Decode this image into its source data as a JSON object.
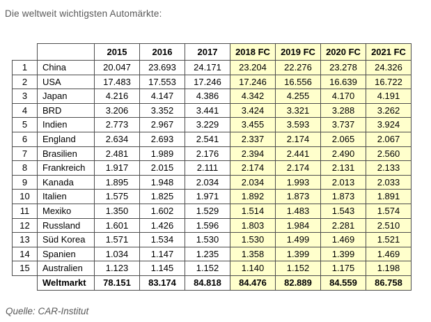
{
  "title": "Die weltweit wichtigsten Automärkte:",
  "source": "Quelle: CAR-Institut",
  "colors": {
    "fc_background": "#ffffcc",
    "grid_border": "#4d4d4d",
    "muted_text": "#595959"
  },
  "table": {
    "year_headers": [
      "2015",
      "2016",
      "2017",
      "2018 FC",
      "2019 FC",
      "2020 FC",
      "2021 FC"
    ],
    "fc_start_index": 3,
    "rows": [
      {
        "rank": "1",
        "country": "China",
        "values": [
          "20.047",
          "23.693",
          "24.171",
          "23.204",
          "22.276",
          "23.278",
          "24.326"
        ]
      },
      {
        "rank": "2",
        "country": "USA",
        "values": [
          "17.483",
          "17.553",
          "17.246",
          "17.246",
          "16.556",
          "16.639",
          "16.722"
        ]
      },
      {
        "rank": "3",
        "country": "Japan",
        "values": [
          "4.216",
          "4.147",
          "4.386",
          "4.342",
          "4.255",
          "4.170",
          "4.191"
        ]
      },
      {
        "rank": "4",
        "country": "BRD",
        "values": [
          "3.206",
          "3.352",
          "3.441",
          "3.424",
          "3.321",
          "3.288",
          "3.262"
        ]
      },
      {
        "rank": "5",
        "country": "Indien",
        "values": [
          "2.773",
          "2.967",
          "3.229",
          "3.455",
          "3.593",
          "3.737",
          "3.924"
        ]
      },
      {
        "rank": "6",
        "country": "England",
        "values": [
          "2.634",
          "2.693",
          "2.541",
          "2.337",
          "2.174",
          "2.065",
          "2.067"
        ]
      },
      {
        "rank": "7",
        "country": "Brasilien",
        "values": [
          "2.481",
          "1.989",
          "2.176",
          "2.394",
          "2.441",
          "2.490",
          "2.560"
        ]
      },
      {
        "rank": "8",
        "country": "Frankreich",
        "values": [
          "1.917",
          "2.015",
          "2.111",
          "2.174",
          "2.174",
          "2.131",
          "2.133"
        ]
      },
      {
        "rank": "9",
        "country": "Kanada",
        "values": [
          "1.895",
          "1.948",
          "2.034",
          "2.034",
          "1.993",
          "2.013",
          "2.033"
        ]
      },
      {
        "rank": "10",
        "country": "Italien",
        "values": [
          "1.575",
          "1.825",
          "1.971",
          "1.892",
          "1.873",
          "1.873",
          "1.891"
        ]
      },
      {
        "rank": "11",
        "country": "Mexiko",
        "values": [
          "1.350",
          "1.602",
          "1.529",
          "1.514",
          "1.483",
          "1.543",
          "1.574"
        ]
      },
      {
        "rank": "12",
        "country": "Russland",
        "values": [
          "1.601",
          "1.426",
          "1.596",
          "1.803",
          "1.984",
          "2.281",
          "2.510"
        ]
      },
      {
        "rank": "13",
        "country": "Süd Korea",
        "values": [
          "1.571",
          "1.534",
          "1.530",
          "1.530",
          "1.499",
          "1.469",
          "1.521"
        ]
      },
      {
        "rank": "14",
        "country": "Spanien",
        "values": [
          "1.034",
          "1.147",
          "1.235",
          "1.358",
          "1.399",
          "1.399",
          "1.469"
        ]
      },
      {
        "rank": "15",
        "country": "Australien",
        "values": [
          "1.123",
          "1.145",
          "1.152",
          "1.140",
          "1.152",
          "1.175",
          "1.198"
        ]
      }
    ],
    "total_row": {
      "label": "Weltmarkt",
      "values": [
        "78.151",
        "83.174",
        "84.818",
        "84.476",
        "82.889",
        "84.559",
        "86.758"
      ]
    }
  }
}
